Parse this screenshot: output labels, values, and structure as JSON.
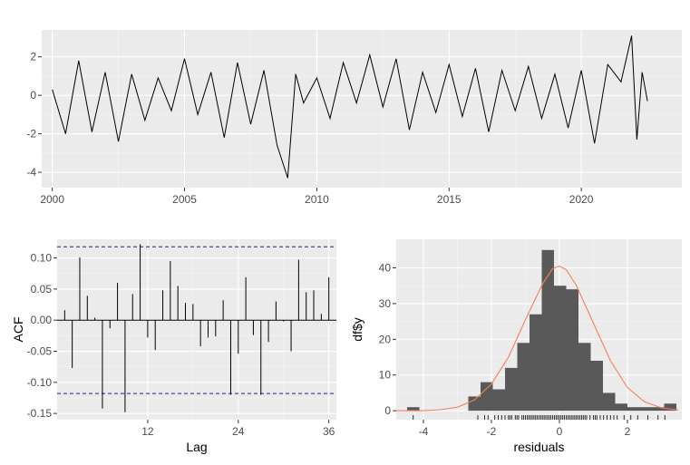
{
  "chart_data": [
    {
      "type": "line",
      "title": "",
      "xlabel": "",
      "ylabel": "",
      "xlim": [
        1999.6,
        2023.8
      ],
      "ylim": [
        -4.8,
        3.4
      ],
      "x_ticks": [
        2000,
        2005,
        2010,
        2015,
        2020
      ],
      "x_tick_labels": [
        "2000",
        "2005",
        "2010",
        "2015",
        "2020"
      ],
      "y_ticks": [
        -4,
        -2,
        0,
        2
      ],
      "y_tick_labels": [
        "-4",
        "-2",
        "0",
        "2"
      ],
      "grid": true,
      "series": [
        {
          "x": [
            2000.0,
            2000.5,
            2001.0,
            2001.5,
            2002.0,
            2002.5,
            2003.0,
            2003.5,
            2004.0,
            2004.5,
            2005.0,
            2005.5,
            2006.0,
            2006.5,
            2007.0,
            2007.5,
            2008.0,
            2008.5,
            2008.9,
            2009.2,
            2009.5,
            2010.0,
            2010.5,
            2011.0,
            2011.5,
            2012.0,
            2012.5,
            2013.0,
            2013.5,
            2014.0,
            2014.5,
            2015.0,
            2015.5,
            2016.0,
            2016.5,
            2017.0,
            2017.5,
            2018.0,
            2018.5,
            2019.0,
            2019.5,
            2020.0,
            2020.5,
            2021.0,
            2021.5,
            2021.9,
            2022.1,
            2022.3,
            2022.5
          ],
          "y": [
            0.3,
            -2.0,
            1.8,
            -1.9,
            1.2,
            -2.4,
            1.1,
            -1.3,
            0.9,
            -0.8,
            1.9,
            -1.0,
            1.2,
            -2.2,
            1.7,
            -1.5,
            1.3,
            -2.6,
            -4.3,
            1.1,
            -0.4,
            0.9,
            -1.2,
            1.7,
            -0.4,
            2.1,
            -0.6,
            1.9,
            -1.8,
            1.2,
            -0.9,
            1.6,
            -1.1,
            1.4,
            -1.9,
            1.3,
            -0.8,
            1.5,
            -1.2,
            1.1,
            -1.7,
            1.3,
            -2.5,
            1.6,
            0.7,
            3.1,
            -2.3,
            1.2,
            -0.3
          ]
        }
      ]
    },
    {
      "type": "bar",
      "title": "",
      "xlabel": "Lag",
      "ylabel": "ACF",
      "xlim": [
        0,
        37
      ],
      "ylim": [
        -0.16,
        0.13
      ],
      "x_ticks": [
        12,
        24,
        36
      ],
      "x_tick_labels": [
        "12",
        "24",
        "36"
      ],
      "y_ticks": [
        -0.15,
        -0.1,
        -0.05,
        0.0,
        0.05,
        0.1
      ],
      "y_tick_labels": [
        "-0.15",
        "-0.10",
        "-0.05",
        "0.00",
        "0.05",
        "0.10"
      ],
      "confidence_band": [
        -0.118,
        0.118
      ],
      "grid": true,
      "lags": [
        1,
        2,
        3,
        4,
        5,
        6,
        7,
        8,
        9,
        10,
        11,
        12,
        13,
        14,
        15,
        16,
        17,
        18,
        19,
        20,
        21,
        22,
        23,
        24,
        25,
        26,
        27,
        28,
        29,
        30,
        31,
        32,
        33,
        34,
        35,
        36
      ],
      "values": [
        0.016,
        -0.077,
        0.101,
        0.039,
        0.004,
        -0.142,
        -0.013,
        0.06,
        -0.148,
        0.042,
        0.122,
        -0.028,
        -0.048,
        0.048,
        0.095,
        0.055,
        0.028,
        0.026,
        -0.042,
        -0.028,
        -0.026,
        0.032,
        -0.12,
        -0.054,
        0.069,
        -0.024,
        -0.12,
        -0.035,
        0.03,
        -0.002,
        -0.05,
        0.097,
        0.045,
        0.048,
        0.01,
        0.069
      ]
    },
    {
      "type": "bar",
      "title": "",
      "xlabel": "residuals",
      "ylabel": "df$y",
      "xlim": [
        -4.8,
        3.6
      ],
      "ylim": [
        -2.5,
        48
      ],
      "x_ticks": [
        -4,
        -2,
        0,
        2
      ],
      "x_tick_labels": [
        "-4",
        "-2",
        "0",
        "2"
      ],
      "y_ticks": [
        0,
        10,
        20,
        30,
        40
      ],
      "y_tick_labels": [
        "0",
        "10",
        "20",
        "30",
        "40"
      ],
      "grid": true,
      "bin_width": 0.36,
      "bin_centers": [
        -4.3,
        -3.94,
        -3.58,
        -3.22,
        -2.86,
        -2.5,
        -2.14,
        -1.78,
        -1.42,
        -1.06,
        -0.7,
        -0.34,
        0.02,
        0.38,
        0.74,
        1.1,
        1.46,
        1.82,
        2.18,
        2.54,
        2.9,
        3.26
      ],
      "counts": [
        1,
        0,
        0,
        0,
        0,
        4,
        8,
        6,
        12,
        19,
        27,
        45,
        35,
        34,
        19,
        14,
        5,
        2,
        1,
        1,
        1,
        2
      ],
      "density_curve": {
        "x": [
          -4.8,
          -4.0,
          -3.5,
          -3.0,
          -2.5,
          -2.0,
          -1.5,
          -1.0,
          -0.5,
          -0.2,
          0.0,
          0.2,
          0.5,
          1.0,
          1.5,
          2.0,
          2.5,
          3.0,
          3.5
        ],
        "y": [
          0.0,
          0.0,
          0.3,
          1.0,
          3.0,
          7.5,
          15.0,
          25.5,
          35.5,
          39.8,
          40.5,
          39.5,
          35.0,
          24.5,
          14.0,
          6.5,
          2.5,
          0.8,
          0.2
        ]
      },
      "rug": [
        -4.3,
        -2.4,
        -2.2,
        -2.1,
        -1.9,
        -1.8,
        -1.7,
        -1.6,
        -1.5,
        -1.45,
        -1.4,
        -1.3,
        -1.25,
        -1.2,
        -1.1,
        -1.05,
        -1.0,
        -0.95,
        -0.9,
        -0.85,
        -0.8,
        -0.75,
        -0.7,
        -0.65,
        -0.6,
        -0.55,
        -0.5,
        -0.45,
        -0.4,
        -0.35,
        -0.3,
        -0.25,
        -0.2,
        -0.15,
        -0.1,
        -0.05,
        0.0,
        0.05,
        0.1,
        0.15,
        0.2,
        0.25,
        0.3,
        0.35,
        0.4,
        0.45,
        0.5,
        0.55,
        0.6,
        0.65,
        0.7,
        0.75,
        0.8,
        0.9,
        1.0,
        1.05,
        1.1,
        1.2,
        1.3,
        1.4,
        1.5,
        1.6,
        1.7,
        1.9,
        2.1,
        2.3,
        2.6,
        2.9,
        3.1
      ]
    }
  ]
}
